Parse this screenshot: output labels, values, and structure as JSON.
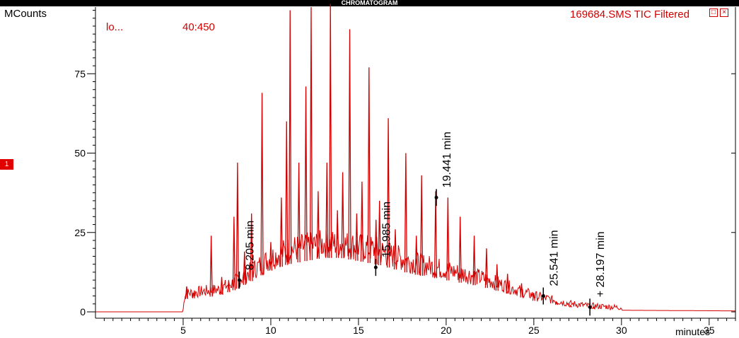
{
  "header": {
    "title": "CHROMATOGRAM"
  },
  "trace": {
    "name": "169684.SMS TIC Filtered",
    "scan_label": "lo...",
    "mass_range": "40:450",
    "marker": "1"
  },
  "colors": {
    "trace": "#d40000",
    "axis": "#000000",
    "annotation": "#000000"
  },
  "icons": {
    "restore": "restore-icon",
    "close": "close-icon"
  },
  "chart_data": {
    "type": "line",
    "title": "",
    "xlabel": "minutes",
    "ylabel": "MCounts",
    "xlim": [
      0,
      36.5
    ],
    "ylim": [
      -2,
      96
    ],
    "x_ticks": [
      5,
      10,
      15,
      20,
      25,
      30,
      35
    ],
    "y_ticks": [
      0,
      25,
      50,
      75
    ],
    "baseline": [
      [
        0,
        0
      ],
      [
        5,
        0
      ],
      [
        5.1,
        4
      ],
      [
        6,
        4.5
      ],
      [
        7,
        5
      ],
      [
        8,
        7
      ],
      [
        9,
        10
      ],
      [
        10,
        13
      ],
      [
        11,
        15
      ],
      [
        12,
        16
      ],
      [
        13,
        17
      ],
      [
        14,
        17
      ],
      [
        15,
        16
      ],
      [
        16,
        15
      ],
      [
        17,
        13.5
      ],
      [
        18,
        12
      ],
      [
        19,
        11
      ],
      [
        20,
        10
      ],
      [
        21,
        9
      ],
      [
        22,
        8
      ],
      [
        23,
        6.5
      ],
      [
        24,
        5
      ],
      [
        25,
        3.5
      ],
      [
        26,
        2.5
      ],
      [
        27,
        1.5
      ],
      [
        28,
        1
      ],
      [
        30,
        0.5
      ],
      [
        36.5,
        0.3
      ]
    ],
    "peaks": [
      {
        "x": 5.2,
        "y": 8
      },
      {
        "x": 5.6,
        "y": 6
      },
      {
        "x": 6.6,
        "y": 24
      },
      {
        "x": 7.2,
        "y": 11
      },
      {
        "x": 7.6,
        "y": 9
      },
      {
        "x": 7.9,
        "y": 30
      },
      {
        "x": 8.1,
        "y": 47
      },
      {
        "x": 8.5,
        "y": 19
      },
      {
        "x": 8.9,
        "y": 31
      },
      {
        "x": 9.5,
        "y": 69
      },
      {
        "x": 10.0,
        "y": 22
      },
      {
        "x": 10.6,
        "y": 36
      },
      {
        "x": 10.9,
        "y": 60
      },
      {
        "x": 11.1,
        "y": 95
      },
      {
        "x": 11.6,
        "y": 47
      },
      {
        "x": 12.0,
        "y": 71
      },
      {
        "x": 12.3,
        "y": 96
      },
      {
        "x": 12.7,
        "y": 38
      },
      {
        "x": 13.2,
        "y": 47
      },
      {
        "x": 13.4,
        "y": 97
      },
      {
        "x": 13.8,
        "y": 32
      },
      {
        "x": 14.1,
        "y": 44
      },
      {
        "x": 14.5,
        "y": 89
      },
      {
        "x": 14.9,
        "y": 31
      },
      {
        "x": 15.2,
        "y": 41
      },
      {
        "x": 15.6,
        "y": 77
      },
      {
        "x": 16.0,
        "y": 29
      },
      {
        "x": 16.2,
        "y": 35
      },
      {
        "x": 16.7,
        "y": 61
      },
      {
        "x": 17.1,
        "y": 26
      },
      {
        "x": 17.7,
        "y": 50
      },
      {
        "x": 18.3,
        "y": 24
      },
      {
        "x": 18.6,
        "y": 43
      },
      {
        "x": 19.4,
        "y": 38
      },
      {
        "x": 20.1,
        "y": 36
      },
      {
        "x": 20.8,
        "y": 30
      },
      {
        "x": 21.6,
        "y": 24
      },
      {
        "x": 22.3,
        "y": 20
      },
      {
        "x": 22.9,
        "y": 15
      },
      {
        "x": 23.5,
        "y": 12
      },
      {
        "x": 24.3,
        "y": 9
      },
      {
        "x": 25.0,
        "y": 6
      },
      {
        "x": 26.3,
        "y": 3
      },
      {
        "x": 27.1,
        "y": 2
      },
      {
        "x": 28.4,
        "y": 1.5
      }
    ],
    "annotations": [
      {
        "x": 8.205,
        "y": 10,
        "label": "8.205 min"
      },
      {
        "x": 15.985,
        "y": 14,
        "label": "15.985 min"
      },
      {
        "x": 19.441,
        "y": 36,
        "label": "19.441 min"
      },
      {
        "x": 25.541,
        "y": 5,
        "label": "25.541 min"
      },
      {
        "x": 28.197,
        "y": 1.5,
        "label": "+ 28.197 min"
      }
    ],
    "grid": false,
    "legend": "none"
  }
}
